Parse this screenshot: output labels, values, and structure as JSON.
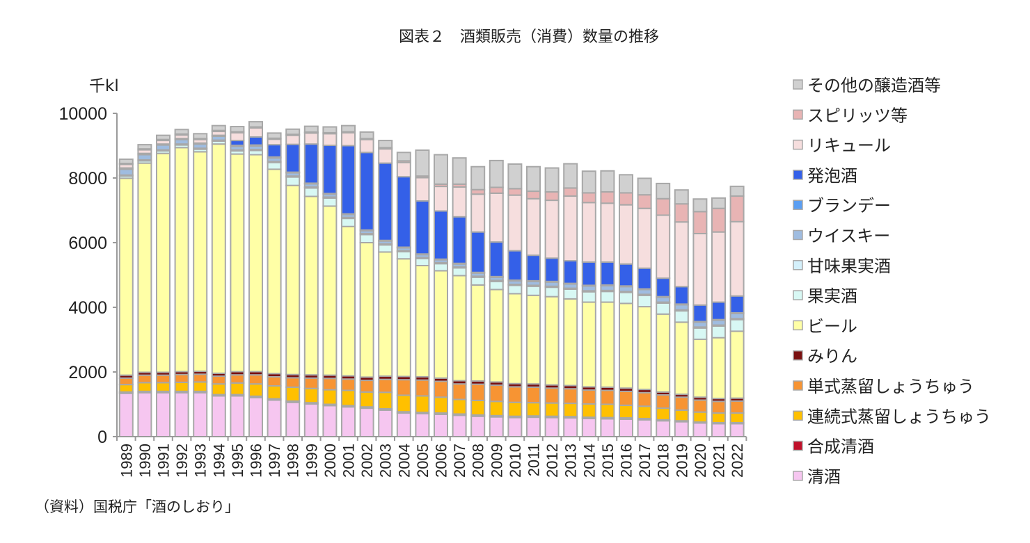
{
  "chart_data": {
    "type": "bar",
    "stacked": true,
    "title": "図表２　酒類販売（消費）数量の推移",
    "unit_label": "千kl",
    "source": "（資料）国税庁「酒のしおり」",
    "ylim": [
      0,
      10000
    ],
    "yticks": [
      0,
      2000,
      4000,
      6000,
      8000,
      10000
    ],
    "grid": false,
    "legend_position": "right",
    "categories": [
      "1989",
      "1990",
      "1991",
      "1992",
      "1993",
      "1994",
      "1995",
      "1996",
      "1997",
      "1998",
      "1999",
      "2000",
      "2001",
      "2002",
      "2003",
      "2004",
      "2005",
      "2006",
      "2007",
      "2008",
      "2009",
      "2010",
      "2011",
      "2012",
      "2013",
      "2014",
      "2015",
      "2016",
      "2017",
      "2018",
      "2019",
      "2020",
      "2021",
      "2022"
    ],
    "series": [
      {
        "name": "清酒",
        "color": "#f6c6f0",
        "values": [
          1340,
          1360,
          1360,
          1360,
          1360,
          1260,
          1260,
          1210,
          1130,
          1060,
          1010,
          960,
          920,
          880,
          820,
          730,
          710,
          690,
          660,
          630,
          610,
          590,
          600,
          590,
          580,
          560,
          550,
          540,
          520,
          490,
          460,
          420,
          400,
          400
        ]
      },
      {
        "name": "合成清酒",
        "color": "#c0102a",
        "values": [
          40,
          40,
          40,
          40,
          40,
          40,
          40,
          40,
          40,
          40,
          40,
          40,
          40,
          40,
          40,
          40,
          40,
          40,
          40,
          40,
          40,
          40,
          40,
          40,
          40,
          40,
          40,
          40,
          40,
          30,
          30,
          30,
          30,
          30
        ]
      },
      {
        "name": "連続式蒸留しょうちゅう",
        "color": "#ffc000",
        "values": [
          230,
          270,
          270,
          280,
          290,
          330,
          360,
          380,
          400,
          430,
          440,
          450,
          470,
          460,
          510,
          510,
          510,
          490,
          450,
          450,
          440,
          430,
          410,
          410,
          410,
          410,
          410,
          390,
          380,
          360,
          330,
          310,
          300,
          300
        ]
      },
      {
        "name": "単式蒸留しょうちゅう",
        "color": "#f79433",
        "values": [
          200,
          230,
          230,
          240,
          240,
          240,
          250,
          280,
          280,
          290,
          320,
          350,
          350,
          360,
          400,
          480,
          490,
          490,
          480,
          500,
          500,
          480,
          480,
          460,
          450,
          430,
          430,
          430,
          420,
          410,
          400,
          370,
          360,
          370
        ]
      },
      {
        "name": "みりん",
        "color": "#7a1010",
        "values": [
          90,
          90,
          90,
          90,
          90,
          90,
          100,
          100,
          100,
          100,
          100,
          100,
          100,
          100,
          100,
          100,
          100,
          100,
          100,
          100,
          100,
          100,
          100,
          100,
          100,
          100,
          100,
          100,
          100,
          90,
          90,
          90,
          90,
          90
        ]
      },
      {
        "name": "ビール",
        "color": "#ffffa6",
        "values": [
          6090,
          6470,
          6770,
          6930,
          6790,
          7090,
          6730,
          6710,
          6320,
          5850,
          5520,
          5230,
          4620,
          4160,
          3840,
          3640,
          3440,
          3320,
          3250,
          2970,
          2860,
          2780,
          2740,
          2730,
          2680,
          2620,
          2630,
          2620,
          2560,
          2410,
          2230,
          1790,
          1880,
          2070
        ]
      },
      {
        "name": "果実酒",
        "color": "#d8f8f4",
        "values": [
          70,
          70,
          80,
          80,
          80,
          90,
          100,
          130,
          210,
          260,
          260,
          250,
          250,
          250,
          220,
          220,
          220,
          220,
          240,
          240,
          250,
          260,
          280,
          290,
          300,
          320,
          330,
          340,
          350,
          340,
          350,
          350,
          360,
          360
        ]
      },
      {
        "name": "甘味果実酒",
        "color": "#d4f0fb",
        "values": [
          30,
          30,
          30,
          30,
          30,
          30,
          30,
          30,
          30,
          30,
          30,
          30,
          30,
          30,
          30,
          30,
          30,
          30,
          30,
          30,
          30,
          30,
          30,
          30,
          30,
          30,
          30,
          30,
          30,
          30,
          30,
          30,
          30,
          30
        ]
      },
      {
        "name": "ウイスキー",
        "color": "#9fbce0",
        "values": [
          180,
          160,
          150,
          140,
          130,
          120,
          110,
          110,
          110,
          100,
          100,
          90,
          90,
          90,
          90,
          90,
          90,
          90,
          90,
          100,
          100,
          110,
          120,
          130,
          130,
          150,
          150,
          150,
          150,
          150,
          160,
          150,
          150,
          160
        ]
      },
      {
        "name": "ブランデー",
        "color": "#5a9ef2",
        "values": [
          40,
          40,
          30,
          30,
          30,
          30,
          30,
          30,
          30,
          20,
          20,
          20,
          20,
          20,
          20,
          20,
          20,
          20,
          20,
          20,
          20,
          20,
          20,
          20,
          20,
          20,
          20,
          20,
          20,
          20,
          20,
          20,
          20,
          20
        ]
      },
      {
        "name": "発泡酒",
        "color": "#3460e8",
        "values": [
          0,
          0,
          0,
          0,
          0,
          0,
          150,
          250,
          380,
          860,
          1210,
          1490,
          2110,
          2400,
          2390,
          2180,
          1640,
          1490,
          1440,
          1250,
          1070,
          910,
          790,
          720,
          700,
          720,
          710,
          680,
          640,
          570,
          540,
          510,
          540,
          520
        ]
      },
      {
        "name": "リキュール",
        "color": "#f6dede",
        "values": [
          110,
          110,
          110,
          110,
          110,
          120,
          240,
          280,
          170,
          280,
          340,
          360,
          400,
          400,
          440,
          440,
          720,
          760,
          920,
          1170,
          1510,
          1720,
          1750,
          1790,
          2000,
          1840,
          1820,
          1830,
          1850,
          1950,
          2000,
          2210,
          2170,
          2300
        ]
      },
      {
        "name": "スピリッツ等",
        "color": "#e8b4b4",
        "values": [
          30,
          30,
          30,
          30,
          30,
          30,
          30,
          30,
          30,
          30,
          30,
          30,
          30,
          30,
          40,
          50,
          50,
          70,
          90,
          140,
          180,
          200,
          230,
          260,
          250,
          300,
          350,
          370,
          420,
          510,
          560,
          680,
          730,
          790
        ]
      },
      {
        "name": "その他の醸造酒等",
        "color": "#d0d0d0",
        "values": [
          130,
          130,
          130,
          140,
          150,
          150,
          160,
          160,
          160,
          160,
          180,
          180,
          190,
          200,
          220,
          260,
          800,
          910,
          810,
          710,
          830,
          760,
          760,
          740,
          750,
          670,
          650,
          560,
          510,
          470,
          430,
          390,
          320,
          300
        ]
      }
    ]
  }
}
